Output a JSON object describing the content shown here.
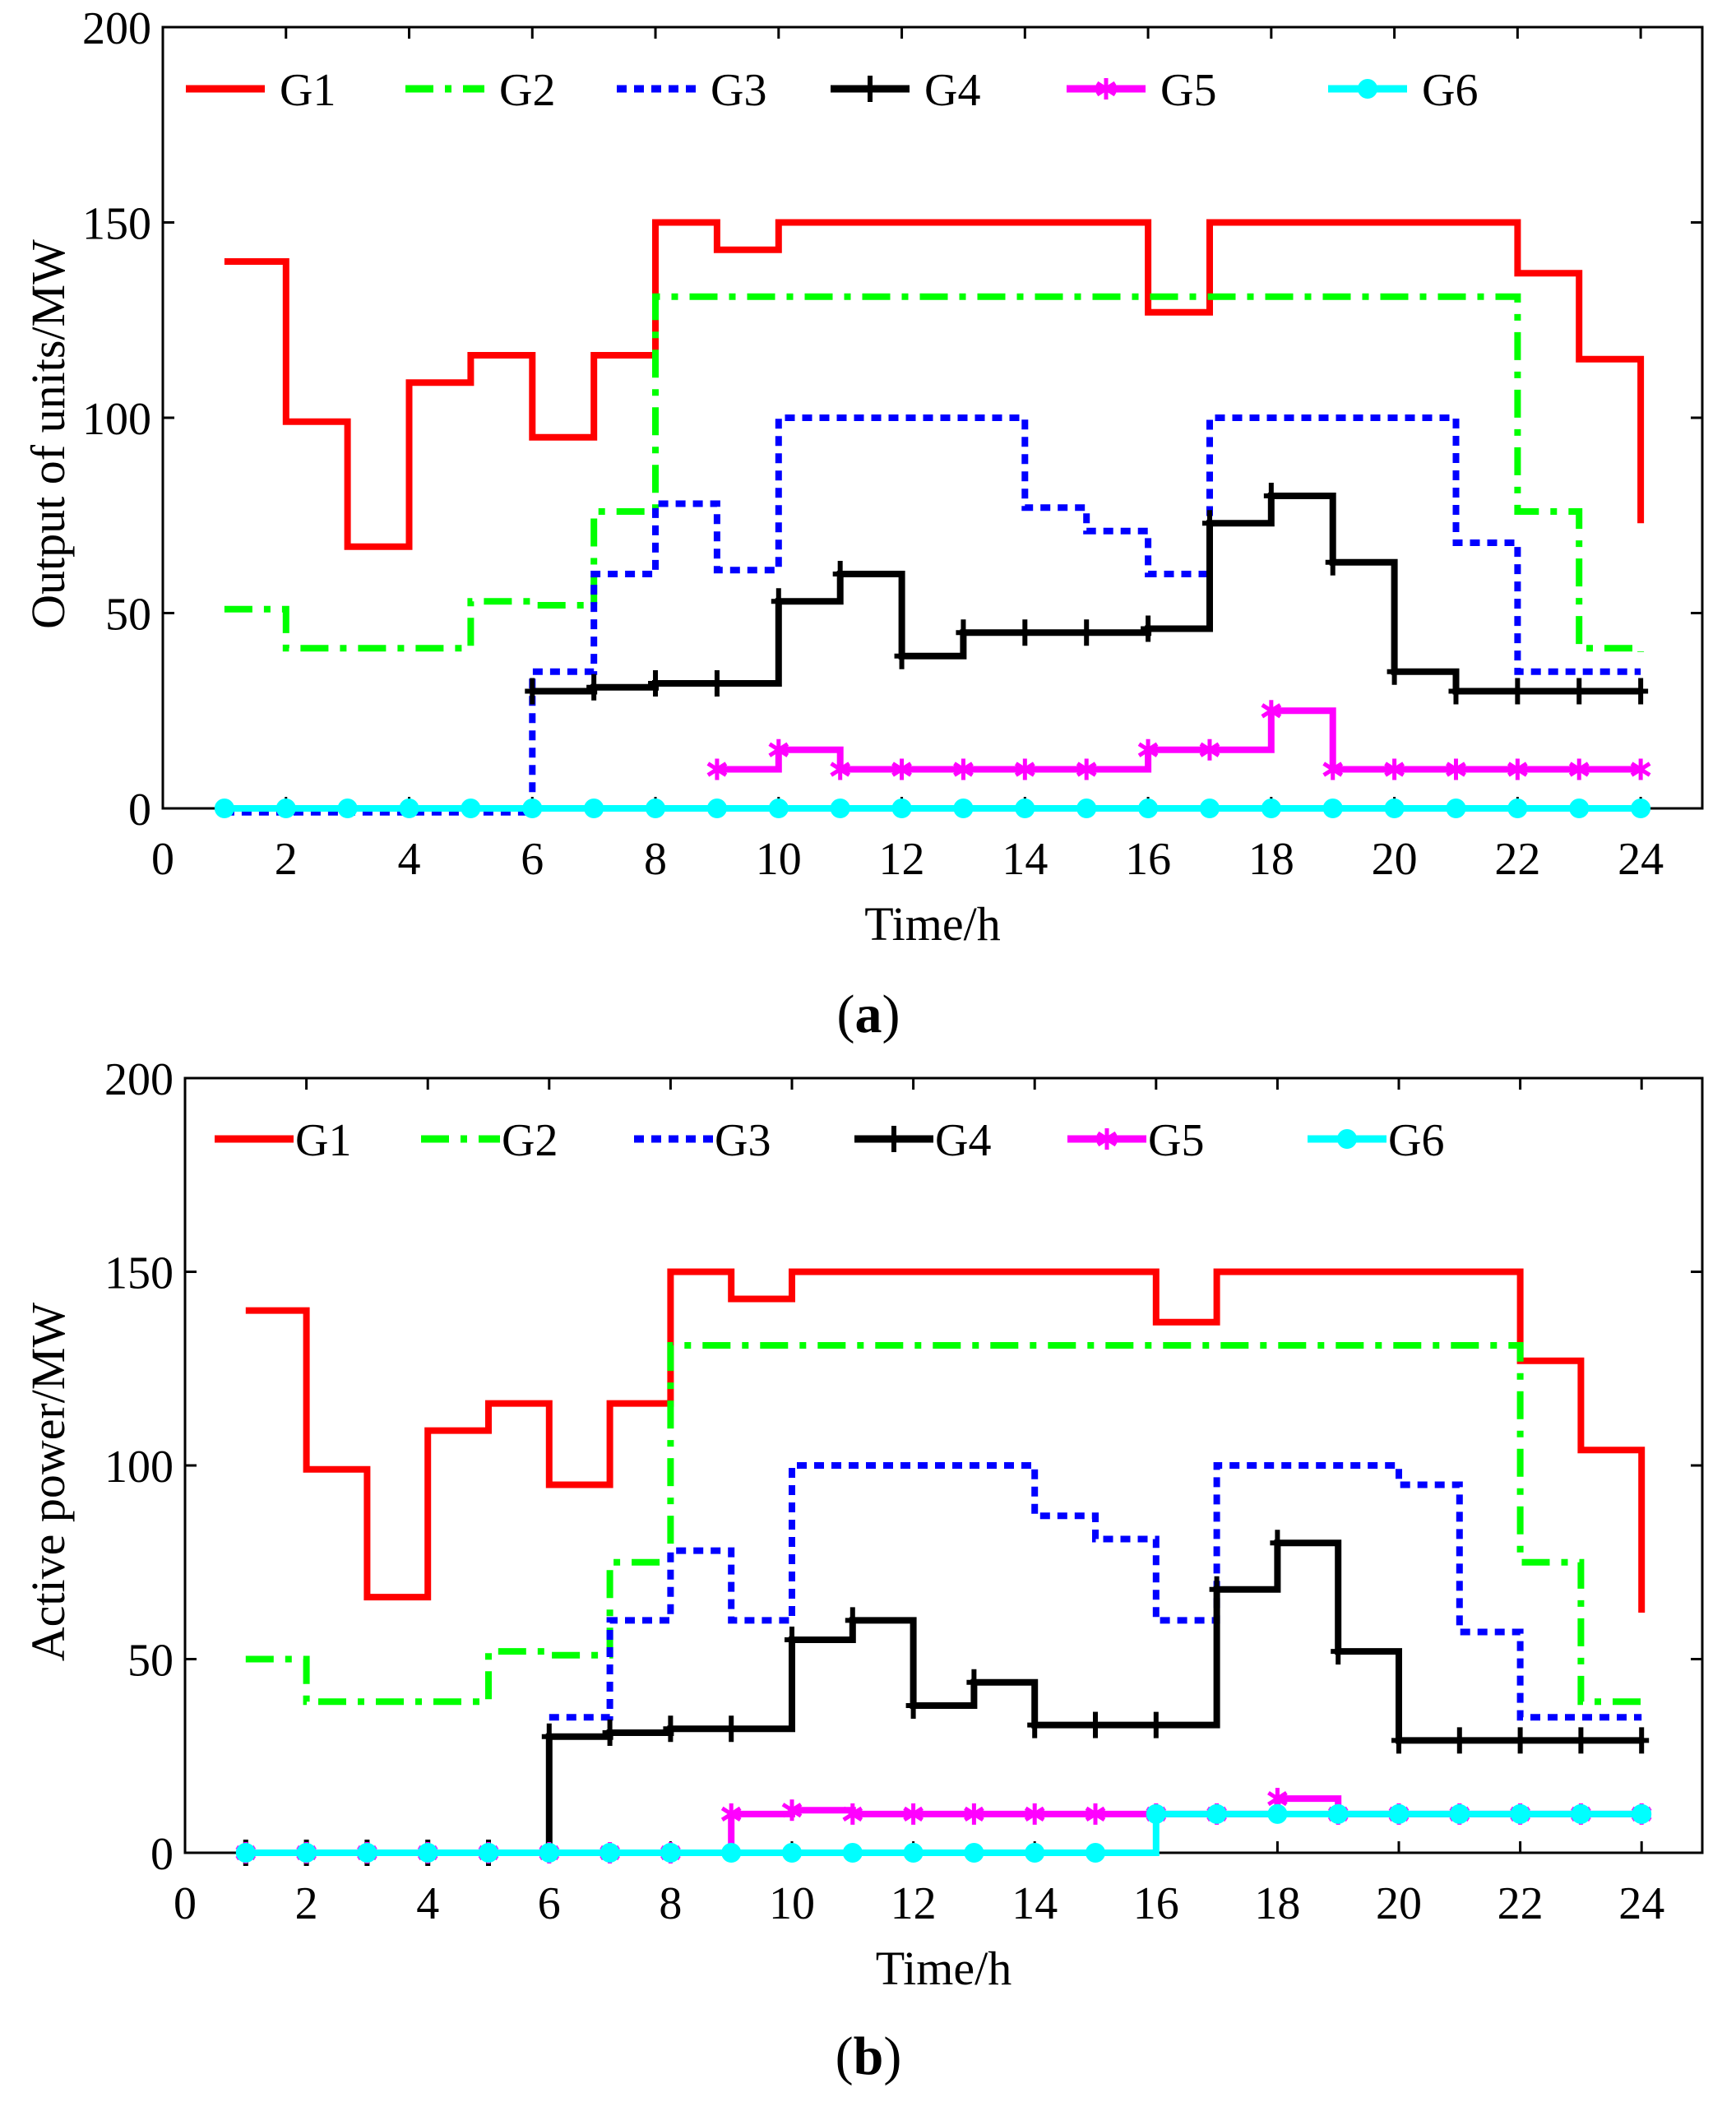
{
  "chart_data": [
    {
      "type": "line",
      "caption": "a",
      "xlabel": "Time/h",
      "ylabel": "Output of units/MW",
      "xlim": [
        0,
        25
      ],
      "ylim": [
        0,
        200
      ],
      "xticks": [
        0,
        2,
        4,
        6,
        8,
        10,
        12,
        14,
        16,
        18,
        20,
        22,
        24
      ],
      "yticks": [
        0,
        50,
        100,
        150,
        200
      ],
      "series": [
        {
          "name": "G1",
          "color": "#ff0000",
          "style": "solid",
          "marker": "none",
          "x": [
            1,
            2,
            3,
            4,
            5,
            6,
            7,
            8,
            9,
            10,
            11,
            12,
            13,
            14,
            15,
            16,
            17,
            18,
            19,
            20,
            21,
            22,
            23,
            24
          ],
          "values": [
            140,
            99,
            67,
            109,
            116,
            95,
            116,
            150,
            143,
            150,
            150,
            150,
            150,
            150,
            150,
            127,
            150,
            150,
            150,
            150,
            150,
            137,
            115,
            73
          ]
        },
        {
          "name": "G2",
          "color": "#00ff00",
          "style": "dashdot",
          "marker": "none",
          "x": [
            1,
            2,
            3,
            4,
            5,
            6,
            7,
            8,
            9,
            10,
            11,
            12,
            13,
            14,
            15,
            16,
            17,
            18,
            19,
            20,
            21,
            22,
            23,
            24
          ],
          "values": [
            51,
            41,
            41,
            41,
            53,
            52,
            76,
            131,
            131,
            131,
            131,
            131,
            131,
            131,
            131,
            131,
            131,
            131,
            131,
            131,
            131,
            76,
            41,
            40
          ]
        },
        {
          "name": "G3",
          "color": "#0000ff",
          "style": "dotted",
          "marker": "none",
          "x": [
            1,
            2,
            3,
            4,
            5,
            6,
            7,
            8,
            9,
            10,
            11,
            12,
            13,
            14,
            15,
            16,
            17,
            18,
            19,
            20,
            21,
            22,
            23,
            24
          ],
          "values": [
            -1,
            -1,
            -1,
            -1,
            -1,
            35,
            60,
            78,
            61,
            100,
            100,
            100,
            100,
            77,
            71,
            60,
            100,
            100,
            100,
            100,
            68,
            35,
            35,
            35
          ]
        },
        {
          "name": "G4",
          "color": "#000000",
          "style": "solid",
          "marker": "plus",
          "x": [
            6,
            7,
            8,
            9,
            10,
            11,
            12,
            13,
            14,
            15,
            16,
            17,
            18,
            19,
            20,
            21,
            22,
            23,
            24
          ],
          "values": [
            30,
            31,
            32,
            32,
            53,
            60,
            39,
            45,
            45,
            45,
            46,
            73,
            80,
            63,
            35,
            30,
            30,
            30,
            30
          ]
        },
        {
          "name": "G5",
          "color": "#ff00ff",
          "style": "solid",
          "marker": "star",
          "x": [
            9,
            10,
            11,
            12,
            13,
            14,
            15,
            16,
            17,
            18,
            19,
            20,
            21,
            22,
            23,
            24
          ],
          "values": [
            10,
            15,
            10,
            10,
            10,
            10,
            10,
            15,
            15,
            25,
            10,
            10,
            10,
            10,
            10,
            10
          ]
        },
        {
          "name": "G6",
          "color": "#00ffff",
          "style": "solid",
          "marker": "circle",
          "x": [
            1,
            2,
            3,
            4,
            5,
            6,
            7,
            8,
            9,
            10,
            11,
            12,
            13,
            14,
            15,
            16,
            17,
            18,
            19,
            20,
            21,
            22,
            23,
            24
          ],
          "values": [
            0,
            0,
            0,
            0,
            0,
            0,
            0,
            0,
            0,
            0,
            0,
            0,
            0,
            0,
            0,
            0,
            0,
            0,
            0,
            0,
            0,
            0,
            0,
            0
          ]
        }
      ]
    },
    {
      "type": "line",
      "caption": "b",
      "xlabel": "Time/h",
      "ylabel": "Active power/MW",
      "xlim": [
        0,
        25
      ],
      "ylim": [
        0,
        200
      ],
      "xticks": [
        0,
        2,
        4,
        6,
        8,
        10,
        12,
        14,
        16,
        18,
        20,
        22,
        24
      ],
      "yticks": [
        0,
        50,
        100,
        150,
        200
      ],
      "series": [
        {
          "name": "G1",
          "color": "#ff0000",
          "style": "solid",
          "marker": "none",
          "x": [
            1,
            2,
            3,
            4,
            5,
            6,
            7,
            8,
            9,
            10,
            11,
            12,
            13,
            14,
            15,
            16,
            17,
            18,
            19,
            20,
            21,
            22,
            23,
            24
          ],
          "values": [
            140,
            99,
            66,
            109,
            116,
            95,
            116,
            150,
            143,
            150,
            150,
            150,
            150,
            150,
            150,
            137,
            150,
            150,
            150,
            150,
            150,
            127,
            104,
            62
          ]
        },
        {
          "name": "G2",
          "color": "#00ff00",
          "style": "dashdot",
          "marker": "none",
          "x": [
            1,
            2,
            3,
            4,
            5,
            6,
            7,
            8,
            9,
            10,
            11,
            12,
            13,
            14,
            15,
            16,
            17,
            18,
            19,
            20,
            21,
            22,
            23,
            24
          ],
          "values": [
            50,
            39,
            39,
            39,
            52,
            51,
            75,
            131,
            131,
            131,
            131,
            131,
            131,
            131,
            131,
            131,
            131,
            131,
            131,
            131,
            131,
            75,
            39,
            39
          ]
        },
        {
          "name": "G3",
          "color": "#0000ff",
          "style": "dotted",
          "marker": "none",
          "x": [
            6,
            7,
            8,
            9,
            10,
            11,
            12,
            13,
            14,
            15,
            16,
            17,
            18,
            19,
            20,
            21,
            22,
            23,
            24
          ],
          "values": [
            35,
            60,
            78,
            60,
            100,
            100,
            100,
            100,
            87,
            81,
            60,
            100,
            100,
            100,
            95,
            57,
            35,
            35,
            35
          ]
        },
        {
          "name": "G4",
          "color": "#000000",
          "style": "solid",
          "marker": "plus",
          "x": [
            1,
            2,
            3,
            4,
            5,
            6,
            7,
            8,
            9,
            10,
            11,
            12,
            13,
            14,
            15,
            16,
            17,
            18,
            19,
            20,
            21,
            22,
            23,
            24
          ],
          "values": [
            0,
            0,
            0,
            0,
            0,
            30,
            31,
            32,
            32,
            55,
            60,
            38,
            44,
            33,
            33,
            33,
            68,
            80,
            52,
            29,
            29,
            29,
            29,
            29
          ]
        },
        {
          "name": "G5",
          "color": "#ff00ff",
          "style": "solid",
          "marker": "star",
          "x": [
            1,
            2,
            3,
            4,
            5,
            6,
            7,
            8,
            9,
            10,
            11,
            12,
            13,
            14,
            15,
            16,
            17,
            18,
            19,
            20,
            21,
            22,
            23,
            24
          ],
          "values": [
            0,
            0,
            0,
            0,
            0,
            0,
            0,
            0,
            10,
            11,
            10,
            10,
            10,
            10,
            10,
            10,
            10,
            14,
            10,
            10,
            10,
            10,
            10,
            10
          ]
        },
        {
          "name": "G6",
          "color": "#00ffff",
          "style": "solid",
          "marker": "circle",
          "x": [
            1,
            2,
            3,
            4,
            5,
            6,
            7,
            8,
            9,
            10,
            11,
            12,
            13,
            14,
            15,
            16,
            17,
            18,
            19,
            20,
            21,
            22,
            23,
            24
          ],
          "values": [
            0,
            0,
            0,
            0,
            0,
            0,
            0,
            0,
            0,
            0,
            0,
            0,
            0,
            0,
            0,
            10,
            10,
            10,
            10,
            10,
            10,
            10,
            10,
            10
          ]
        }
      ]
    }
  ]
}
